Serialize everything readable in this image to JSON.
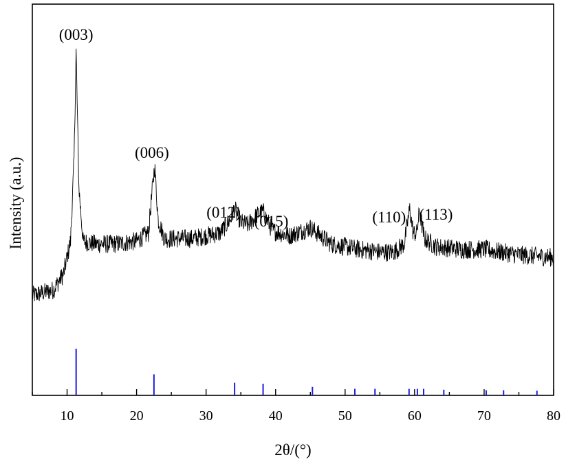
{
  "chart_data": {
    "type": "line",
    "xlabel": "2θ/(°)",
    "ylabel": "Intensity (a.u.)",
    "xlim": [
      5,
      80
    ],
    "x_ticks": [
      "10",
      "20",
      "30",
      "40",
      "50",
      "60",
      "70",
      "80"
    ],
    "y_ticks_shown": false,
    "grid": false,
    "series": [
      {
        "style": "noisy-line",
        "color": "#000000",
        "points": [
          [
            5,
            0.1
          ],
          [
            8,
            0.12
          ],
          [
            9.5,
            0.18
          ],
          [
            10.5,
            0.3
          ],
          [
            11.0,
            0.6
          ],
          [
            11.3,
            1.0
          ],
          [
            11.7,
            0.5
          ],
          [
            12.3,
            0.3
          ],
          [
            14,
            0.29
          ],
          [
            17,
            0.29
          ],
          [
            20,
            0.3
          ],
          [
            21.7,
            0.33
          ],
          [
            22.3,
            0.5
          ],
          [
            22.6,
            0.58
          ],
          [
            23.1,
            0.38
          ],
          [
            24,
            0.31
          ],
          [
            28,
            0.31
          ],
          [
            32,
            0.33
          ],
          [
            33.5,
            0.38
          ],
          [
            34.1,
            0.42
          ],
          [
            35,
            0.37
          ],
          [
            36,
            0.36
          ],
          [
            37.5,
            0.4
          ],
          [
            38.2,
            0.41
          ],
          [
            39.5,
            0.34
          ],
          [
            42,
            0.32
          ],
          [
            45,
            0.35
          ],
          [
            48,
            0.29
          ],
          [
            52,
            0.27
          ],
          [
            55,
            0.26
          ],
          [
            57,
            0.26
          ],
          [
            58.5,
            0.29
          ],
          [
            59.3,
            0.42
          ],
          [
            59.8,
            0.33
          ],
          [
            60.3,
            0.33
          ],
          [
            60.7,
            0.41
          ],
          [
            61.4,
            0.31
          ],
          [
            63,
            0.28
          ],
          [
            67,
            0.27
          ],
          [
            70,
            0.27
          ],
          [
            75,
            0.25
          ],
          [
            80,
            0.24
          ]
        ]
      },
      {
        "style": "stick-pattern",
        "color": "#1c1ce0",
        "x": [
          11.3,
          22.5,
          34.1,
          38.2,
          45.3,
          51.4,
          54.3,
          59.2,
          60.4,
          61.3,
          64.2,
          70.3,
          72.8,
          77.6
        ],
        "values": [
          1.0,
          0.45,
          0.27,
          0.25,
          0.18,
          0.14,
          0.14,
          0.14,
          0.14,
          0.14,
          0.12,
          0.11,
          0.11,
          0.1
        ]
      }
    ],
    "annotations": [
      {
        "text": "(003)",
        "x": 11.3
      },
      {
        "text": "(006)",
        "x": 22.6
      },
      {
        "text": "(012)",
        "x": 34.1
      },
      {
        "text": "(015)",
        "x": 38.2
      },
      {
        "text": "(110)",
        "x": 59.3
      },
      {
        "text": "(113)",
        "x": 60.7
      }
    ]
  }
}
